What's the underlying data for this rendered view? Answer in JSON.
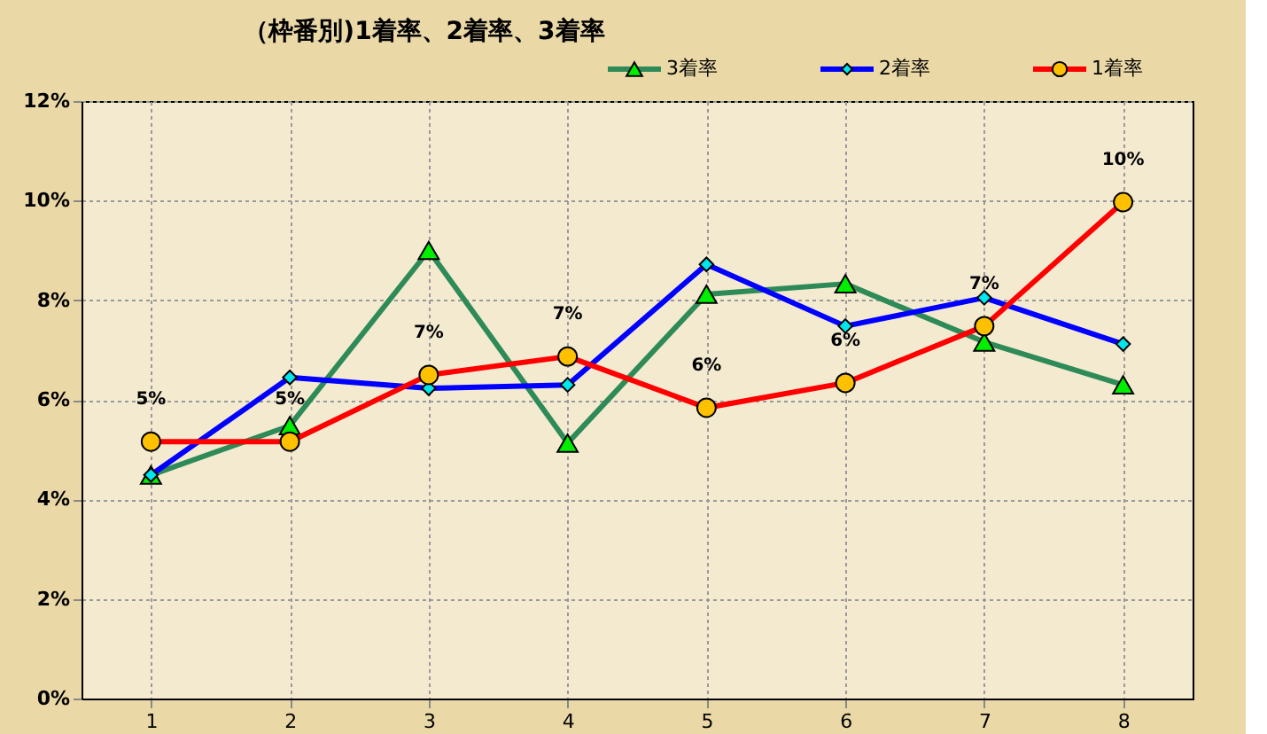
{
  "chart_data": {
    "type": "line",
    "title": "（枠番別)1着率、2着率、3着率",
    "categories": [
      "1",
      "2",
      "3",
      "4",
      "5",
      "6",
      "7",
      "8"
    ],
    "series": [
      {
        "name": "3着率",
        "color": "#2e8b57",
        "colors": [
          "#00ee00",
          "#00ee00",
          "#00ee00",
          "#00ee00",
          "#00ee00",
          "#00ee00",
          "#00ee00",
          "#00ee00"
        ],
        "marker": "triangle",
        "values": [
          4.49,
          5.48,
          9.0,
          5.13,
          8.12,
          8.33,
          7.16,
          6.3
        ]
      },
      {
        "name": "2着率",
        "color": "#0000ff",
        "colors": [
          "#00e5ee",
          "#00e5ee",
          "#00e5ee",
          "#00e5ee",
          "#00e5ee",
          "#00e5ee",
          "#00e5ee",
          "#00e5ee"
        ],
        "marker": "diamond",
        "values": [
          4.49,
          6.45,
          6.23,
          6.3,
          8.72,
          7.48,
          8.05,
          7.12
        ]
      },
      {
        "name": "1着率",
        "color": "#ff0000",
        "colors": [
          "#ffc000",
          "#ffc000",
          "#ffc000",
          "#ffc000",
          "#ffc000",
          "#ffc000",
          "#ffc000",
          "#ffc000"
        ],
        "marker": "circle",
        "values": [
          5.16,
          5.16,
          6.5,
          6.87,
          5.84,
          6.34,
          7.48,
          9.97
        ],
        "value_labels": [
          "5%",
          "5%",
          "7%",
          "7%",
          "6%",
          "6%",
          "7%",
          "10%"
        ]
      }
    ],
    "ylim": [
      0,
      12
    ],
    "yticks": [
      {
        "value": 0,
        "label": "0%"
      },
      {
        "value": 2,
        "label": "2%"
      },
      {
        "value": 4,
        "label": "4%"
      },
      {
        "value": 6,
        "label": "6%"
      },
      {
        "value": 8,
        "label": "8%"
      },
      {
        "value": 10,
        "label": "10%"
      },
      {
        "value": 12,
        "label": "12%"
      }
    ],
    "grid": true,
    "legend": "top right"
  }
}
